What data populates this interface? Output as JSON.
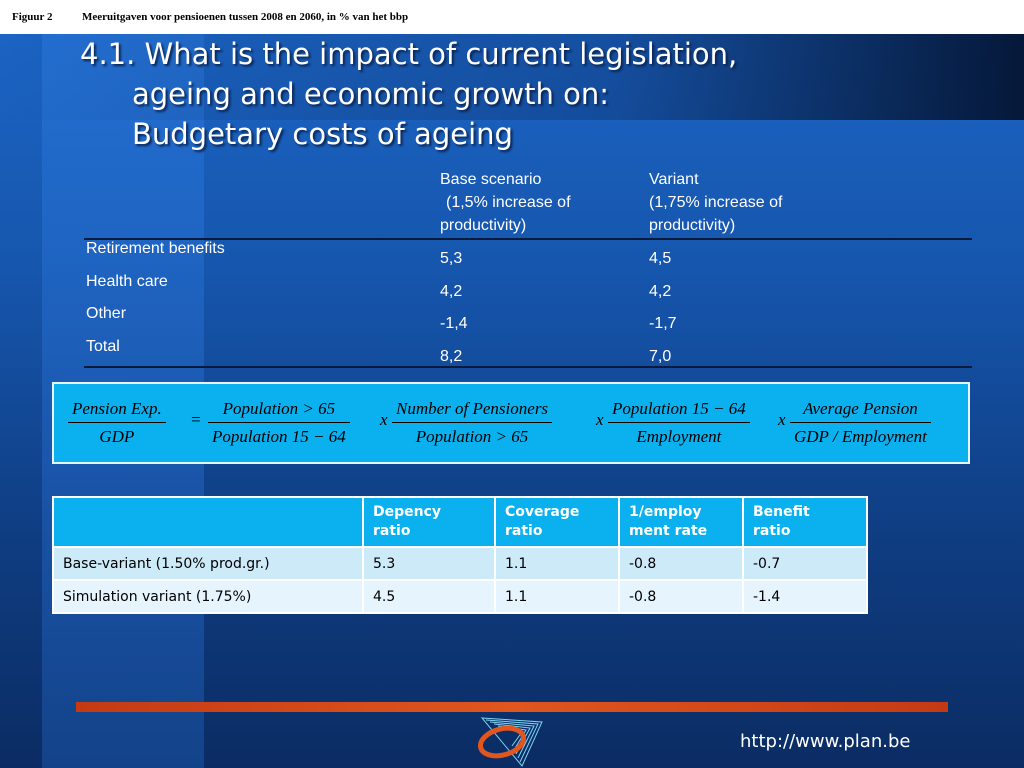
{
  "caption": {
    "label": "Figuur 2",
    "text": "Meeruitgaven voor pensioenen tussen 2008 en 2060, in % van het bbp"
  },
  "title": {
    "line1": "4.1. What is the impact of current legislation,",
    "line2": "ageing and economic growth on:",
    "line3": "Budgetary costs of ageing"
  },
  "summary_table": {
    "headers": {
      "base_l1": "Base scenario",
      "base_l2": "(1,5% increase of",
      "base_l3": "productivity)",
      "variant_l1": "Variant",
      "variant_l2": "(1,75% increase of",
      "variant_l3": "productivity)"
    },
    "rows": [
      {
        "label": "Retirement benefits",
        "base": "5,3",
        "variant": "4,5"
      },
      {
        "label": "Health care",
        "base": "4,2",
        "variant": "4,2"
      },
      {
        "label": "Other",
        "base": "-1,4",
        "variant": "-1,7"
      },
      {
        "label": "Total",
        "base": "8,2",
        "variant": "7,0"
      }
    ]
  },
  "formula": {
    "f1_num": "Pension Exp.",
    "f1_den": "GDP",
    "eq": "=",
    "f2_num": "Population > 65",
    "f2_den": "Population 15 − 64",
    "x": "x",
    "f3_num": "Number of  Pensioners",
    "f3_den": "Population > 65",
    "f4_num": "Population 15 − 64",
    "f4_den": "Employment",
    "f5_num": "Average Pension",
    "f5_den": "GDP / Employment"
  },
  "decomposition_table": {
    "headers": [
      "",
      "Depency ratio",
      "Coverage ratio",
      "1/employ ment rate",
      "Benefit ratio"
    ],
    "header_lines": {
      "h1a": "Depency",
      "h1b": "ratio",
      "h2a": "Coverage",
      "h2b": "ratio",
      "h3a": "1/employ",
      "h3b": "ment rate",
      "h4a": "Benefit",
      "h4b": "ratio"
    },
    "rows": [
      {
        "label": "Base-variant (1.50% prod.gr.)",
        "v1": "5.3",
        "v2": "1.1",
        "v3": "-0.8",
        "v4": "-0.7"
      },
      {
        "label": "Simulation variant (1.75%)",
        "v1": "4.5",
        "v2": "1.1",
        "v3": "-0.8",
        "v4": "-1.4"
      }
    ]
  },
  "footer": {
    "url": "http://www.plan.be",
    "logo_icon": "planning-bureau-logo-icon"
  },
  "colors": {
    "background": "#1656ad",
    "accent_cyan": "#0bb0ef",
    "bar_red": "#e0561e"
  }
}
